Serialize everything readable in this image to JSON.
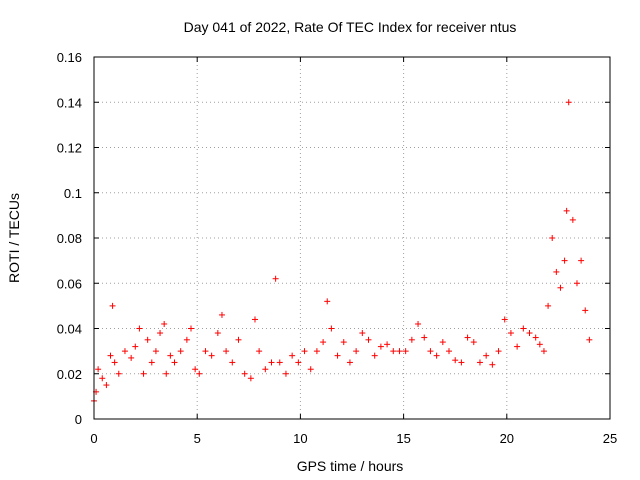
{
  "chart_data": {
    "type": "scatter",
    "title": "Day 041 of 2022, Rate Of TEC Index for receiver ntus",
    "xlabel": "GPS time / hours",
    "ylabel": "ROTI / TECUs",
    "xlim": [
      0,
      25
    ],
    "ylim": [
      0,
      0.16
    ],
    "x_ticks": [
      "0",
      "5",
      "10",
      "15",
      "20",
      "25"
    ],
    "y_ticks": [
      "0",
      "0.02",
      "0.04",
      "0.06",
      "0.08",
      "0.1",
      "0.12",
      "0.14",
      "0.16"
    ],
    "grid": true,
    "marker": "+",
    "colors": {
      "points": "#ff0000",
      "grid": "#a0a0a0",
      "frame": "#000000"
    },
    "series": [
      {
        "x": [
          0.0,
          0.1,
          0.2,
          0.4,
          0.6,
          0.8,
          0.9,
          1.0,
          1.2,
          1.5,
          1.8,
          2.0,
          2.2,
          2.4,
          2.6,
          2.8,
          3.0,
          3.2,
          3.4,
          3.5,
          3.7,
          3.9,
          4.2,
          4.5,
          4.7,
          4.9,
          5.1,
          5.4,
          5.7,
          6.0,
          6.2,
          6.4,
          6.7,
          7.0,
          7.3,
          7.6,
          7.8,
          8.0,
          8.3,
          8.6,
          8.8,
          9.0,
          9.3,
          9.6,
          9.9,
          10.2,
          10.5,
          10.8,
          11.1,
          11.3,
          11.5,
          11.8,
          12.1,
          12.4,
          12.7,
          13.0,
          13.3,
          13.6,
          13.9,
          14.2,
          14.5,
          14.8,
          15.1,
          15.4,
          15.7,
          16.0,
          16.3,
          16.6,
          16.9,
          17.2,
          17.5,
          17.8,
          18.1,
          18.4,
          18.7,
          19.0,
          19.3,
          19.6,
          19.9,
          20.2,
          20.5,
          20.8,
          21.1,
          21.4,
          21.6,
          21.8,
          22.0,
          22.2,
          22.4,
          22.6,
          22.8,
          22.9,
          23.0,
          23.2,
          23.4,
          23.6,
          23.8,
          24.0
        ],
        "y": [
          0.008,
          0.012,
          0.022,
          0.018,
          0.015,
          0.028,
          0.05,
          0.025,
          0.02,
          0.03,
          0.027,
          0.032,
          0.04,
          0.02,
          0.035,
          0.025,
          0.03,
          0.038,
          0.042,
          0.02,
          0.028,
          0.025,
          0.03,
          0.035,
          0.04,
          0.022,
          0.02,
          0.03,
          0.028,
          0.038,
          0.046,
          0.03,
          0.025,
          0.035,
          0.02,
          0.018,
          0.044,
          0.03,
          0.022,
          0.025,
          0.062,
          0.025,
          0.02,
          0.028,
          0.025,
          0.03,
          0.022,
          0.03,
          0.034,
          0.052,
          0.04,
          0.028,
          0.034,
          0.025,
          0.03,
          0.038,
          0.035,
          0.028,
          0.032,
          0.033,
          0.03,
          0.03,
          0.03,
          0.035,
          0.042,
          0.036,
          0.03,
          0.028,
          0.034,
          0.03,
          0.026,
          0.025,
          0.036,
          0.034,
          0.025,
          0.028,
          0.024,
          0.03,
          0.044,
          0.038,
          0.032,
          0.04,
          0.038,
          0.036,
          0.033,
          0.03,
          0.05,
          0.08,
          0.065,
          0.058,
          0.07,
          0.092,
          0.14,
          0.088,
          0.06,
          0.07,
          0.048,
          0.035
        ]
      }
    ]
  }
}
